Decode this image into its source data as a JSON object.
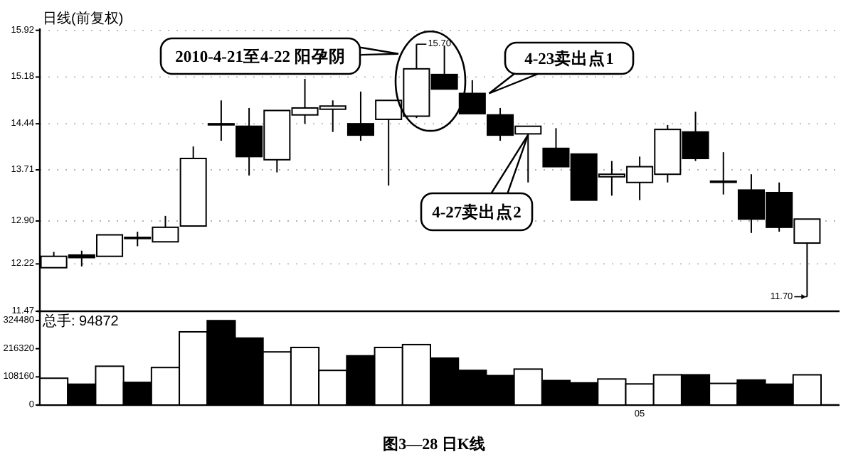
{
  "chart_data": [
    {
      "type": "candlestick",
      "subtitle": "日线(前复权)",
      "categories": [
        null,
        null,
        null,
        null,
        null,
        null,
        null,
        null,
        null,
        null,
        null,
        null,
        null,
        null,
        null,
        null,
        null,
        null,
        null,
        null,
        null,
        null,
        null,
        null,
        null,
        null,
        null,
        null
      ],
      "ohlc": [
        [
          12.16,
          12.41,
          12.16,
          12.34
        ],
        [
          12.36,
          12.43,
          12.18,
          12.32
        ],
        [
          12.34,
          12.68,
          12.34,
          12.68
        ],
        [
          12.64,
          12.73,
          12.5,
          12.63
        ],
        [
          12.57,
          12.98,
          12.57,
          12.8
        ],
        [
          12.82,
          14.08,
          12.82,
          13.89
        ],
        [
          14.44,
          14.81,
          14.17,
          14.43
        ],
        [
          14.4,
          14.69,
          13.62,
          13.92
        ],
        [
          13.87,
          14.65,
          13.67,
          14.65
        ],
        [
          14.58,
          15.15,
          14.44,
          14.69
        ],
        [
          14.67,
          14.81,
          14.31,
          14.72
        ],
        [
          14.44,
          14.95,
          14.17,
          14.26
        ],
        [
          14.51,
          14.81,
          13.46,
          14.81
        ],
        [
          14.56,
          15.7,
          14.53,
          15.31
        ],
        [
          15.22,
          15.68,
          14.99,
          14.99
        ],
        [
          14.92,
          15.13,
          14.6,
          14.6
        ],
        [
          14.58,
          14.69,
          14.17,
          14.26
        ],
        [
          14.28,
          14.4,
          13.51,
          14.4
        ],
        [
          14.05,
          14.37,
          13.76,
          13.76
        ],
        [
          13.96,
          13.96,
          13.23,
          13.23
        ],
        [
          13.6,
          13.85,
          13.3,
          13.64
        ],
        [
          13.51,
          13.92,
          13.23,
          13.76
        ],
        [
          13.64,
          14.42,
          13.51,
          14.35
        ],
        [
          14.31,
          14.63,
          13.85,
          13.89
        ],
        [
          13.52,
          13.99,
          13.32,
          13.53
        ],
        [
          13.39,
          13.64,
          12.71,
          12.93
        ],
        [
          13.35,
          13.51,
          12.73,
          12.8
        ],
        [
          12.55,
          12.93,
          11.7,
          12.93
        ]
      ],
      "ylim": [
        11.47,
        15.95
      ],
      "yticks": [
        11.47,
        12.22,
        {
          "value": 12.9,
          "label": "12.90"
        },
        13.71,
        14.44,
        15.18,
        15.92
      ],
      "grid": "y",
      "tick_labels": "y",
      "annotations": [
        "2010-4-21至4-22 阳孕阴",
        "4-23卖出点1",
        "4-27卖出点2",
        {
          "text": "15.70",
          "y": 15.7
        },
        "11.70"
      ]
    },
    {
      "type": "bar",
      "subtitle": "总手: 94872",
      "categories": [
        null,
        null,
        null,
        null,
        null,
        null,
        null,
        null,
        null,
        null,
        null,
        null,
        null,
        null,
        null,
        null,
        null,
        null,
        null,
        null,
        null,
        "05",
        null,
        null,
        null,
        null,
        null,
        null
      ],
      "values": [
        103000,
        80000,
        149000,
        87000,
        144000,
        281000,
        324000,
        257000,
        204000,
        221000,
        133000,
        189000,
        221000,
        232000,
        180000,
        133000,
        113000,
        138000,
        94000,
        85000,
        100000,
        81000,
        116000,
        116000,
        83000,
        96000,
        80000,
        116000
      ],
      "colors": [
        "#ffffff",
        "#000000",
        "#ffffff",
        "#000000",
        "#ffffff",
        "#ffffff",
        "#000000",
        "#000000",
        "#ffffff",
        "#ffffff",
        "#ffffff",
        "#000000",
        "#ffffff",
        "#ffffff",
        "#000000",
        "#000000",
        "#000000",
        "#ffffff",
        "#000000",
        "#000000",
        "#ffffff",
        "#ffffff",
        "#ffffff",
        "#000000",
        "#ffffff",
        "#000000",
        "#000000",
        "#ffffff"
      ],
      "ylim": [
        0,
        360000
      ],
      "yticks": [
        0,
        108160,
        216320,
        324480
      ],
      "annotations": [
        "图3—28 日K线"
      ]
    }
  ]
}
